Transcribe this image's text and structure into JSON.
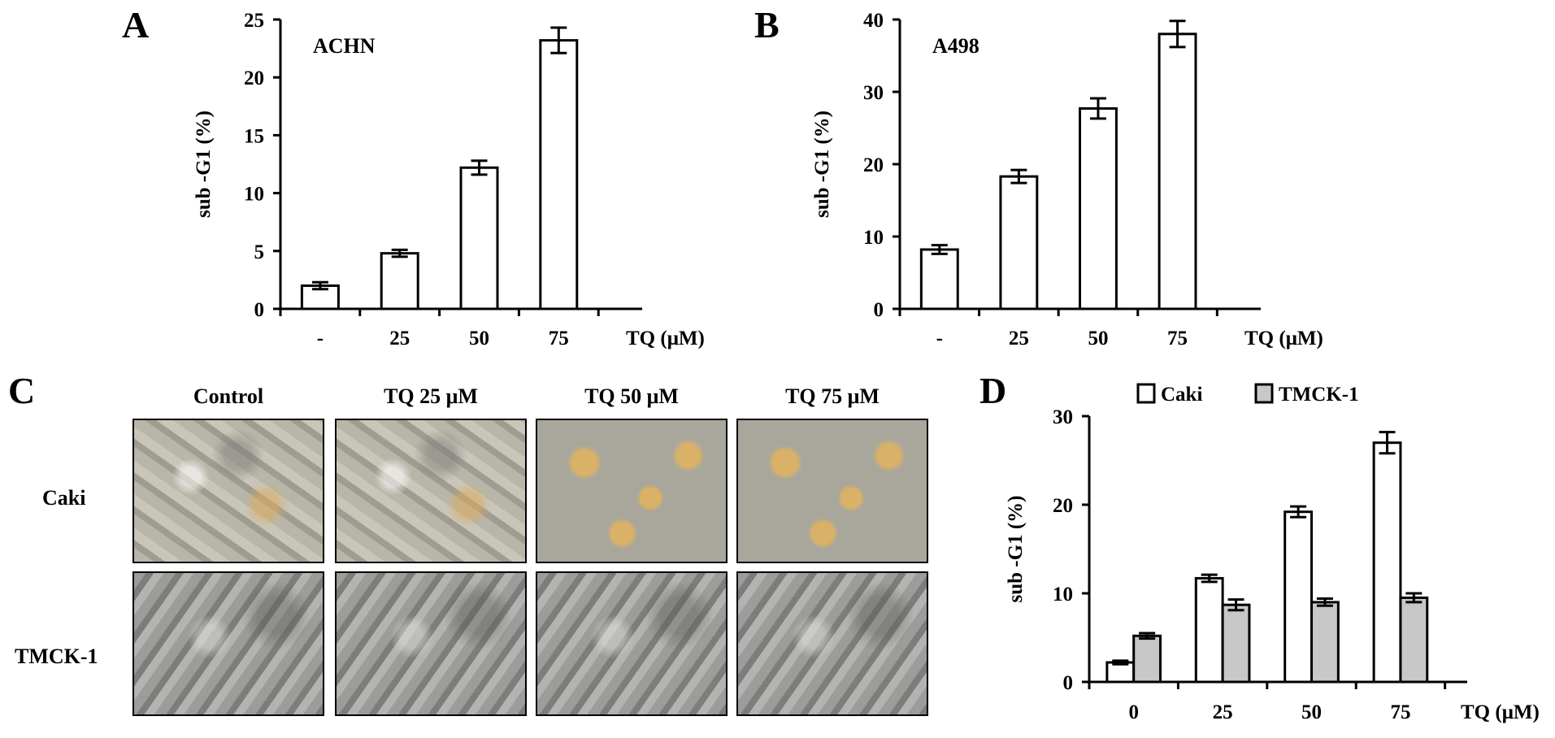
{
  "panel_letters": {
    "a": "A",
    "b": "B",
    "c": "C",
    "d": "D"
  },
  "chart_data": [
    {
      "type": "bar",
      "panel": "A",
      "annotation": "ACHN",
      "ylabel": "sub -G1 (%)",
      "xlabel": "TQ (μM)",
      "categories": [
        "-",
        "25",
        "50",
        "75"
      ],
      "values": [
        2.0,
        4.8,
        12.2,
        23.2
      ],
      "errors": [
        0.3,
        0.3,
        0.6,
        1.1
      ],
      "ylim": [
        0,
        25
      ],
      "yticks": [
        0,
        5,
        10,
        15,
        20,
        25
      ],
      "bar_fill": "#ffffff",
      "grid": false
    },
    {
      "type": "bar",
      "panel": "B",
      "annotation": "A498",
      "ylabel": "sub -G1 (%)",
      "xlabel": "TQ (μM)",
      "categories": [
        "-",
        "25",
        "50",
        "75"
      ],
      "values": [
        8.2,
        18.3,
        27.7,
        38.0
      ],
      "errors": [
        0.6,
        0.9,
        1.4,
        1.8
      ],
      "ylim": [
        0,
        40
      ],
      "yticks": [
        0,
        10,
        20,
        30,
        40
      ],
      "bar_fill": "#ffffff",
      "grid": false
    },
    {
      "type": "bar",
      "panel": "D",
      "ylabel": "sub -G1 (%)",
      "xlabel": "TQ (μM)",
      "categories": [
        "0",
        "25",
        "50",
        "75"
      ],
      "series": [
        {
          "name": "Caki",
          "values": [
            2.2,
            11.7,
            19.2,
            27.0
          ],
          "errors": [
            0.2,
            0.4,
            0.6,
            1.2
          ],
          "color": "#ffffff"
        },
        {
          "name": "TMCK-1",
          "values": [
            5.2,
            8.7,
            9.0,
            9.5
          ],
          "errors": [
            0.3,
            0.6,
            0.4,
            0.5
          ],
          "color": "#c8c8c8"
        }
      ],
      "ylim": [
        0,
        30
      ],
      "yticks": [
        0,
        10,
        20,
        30
      ],
      "legend": "top",
      "grid": false
    }
  ],
  "micrographs": {
    "column_titles": [
      "Control",
      "TQ 25 μM",
      "TQ 50 μM",
      "TQ 75 μM"
    ],
    "row_labels": [
      "Caki",
      "TMCK-1"
    ]
  }
}
